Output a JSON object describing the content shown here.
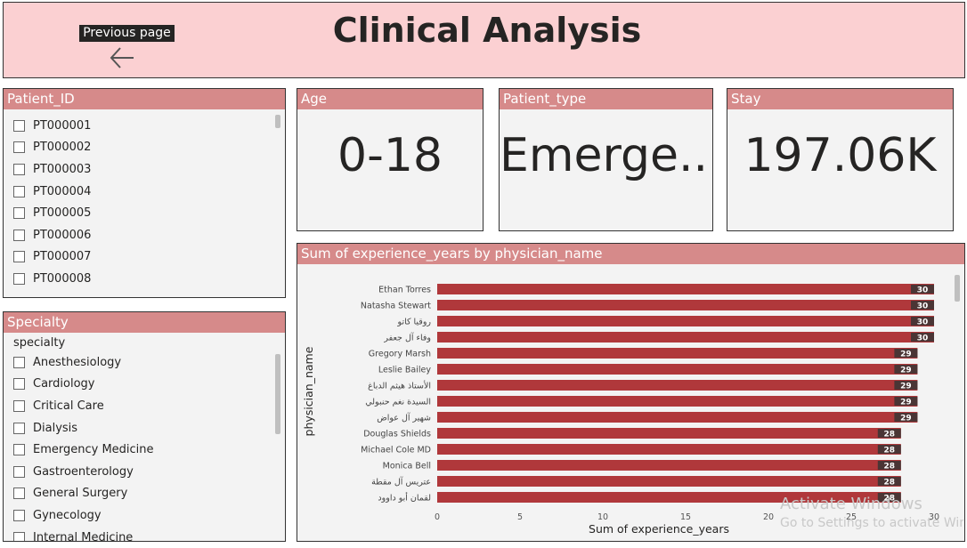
{
  "header": {
    "title": "Clinical Analysis",
    "prev_label": "Previous page"
  },
  "patient_slicer": {
    "title": "Patient_ID",
    "items": [
      "PT000001",
      "PT000002",
      "PT000003",
      "PT000004",
      "PT000005",
      "PT000006",
      "PT000007",
      "PT000008"
    ]
  },
  "specialty_slicer": {
    "title": "Specialty",
    "subheader": "specialty",
    "items": [
      "Anesthesiology",
      "Cardiology",
      "Critical Care",
      "Dialysis",
      "Emergency Medicine",
      "Gastroenterology",
      "General Surgery",
      "Gynecology",
      "Internal Medicine"
    ]
  },
  "cards": {
    "age": {
      "title": "Age",
      "value": "0-18"
    },
    "patient_type": {
      "title": "Patient_type",
      "value": "Emerge..."
    },
    "stay": {
      "title": "Stay",
      "value": "197.06K"
    }
  },
  "chart_panel": {
    "title": "Sum of experience_years by physician_name"
  },
  "chart_data": {
    "type": "bar",
    "orientation": "horizontal",
    "title": "Sum of experience_years by physician_name",
    "xlabel": "Sum of experience_years",
    "ylabel": "physician_name",
    "xlim": [
      0,
      30
    ],
    "xticks": [
      0,
      5,
      10,
      15,
      20,
      25,
      30
    ],
    "categories": [
      "Ethan Torres",
      "Natasha Stewart",
      "روقيا كاتو",
      "وفاء آل جعفر",
      "Gregory Marsh",
      "Leslie Bailey",
      "الأستاذ هيثم الدباغ",
      "السيدة نغم حنبولي",
      "شهير آل عواض",
      "Douglas Shields",
      "Michael Cole MD",
      "Monica Bell",
      "عتريس آل مقطة",
      "لقمان أبو داوود"
    ],
    "values": [
      30,
      30,
      30,
      30,
      29,
      29,
      29,
      29,
      29,
      28,
      28,
      28,
      28,
      28
    ],
    "bar_color": "#b0383b",
    "label_bg": "#4a3535"
  },
  "watermark": {
    "line1": "Activate Windows",
    "line2": "Go to Settings to activate Windows."
  }
}
